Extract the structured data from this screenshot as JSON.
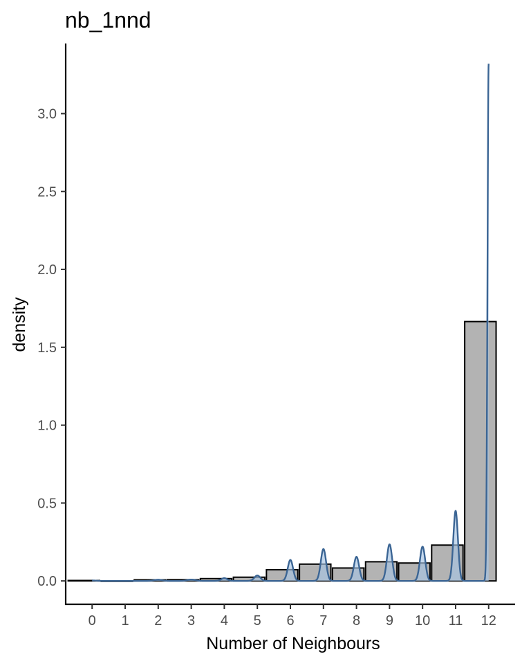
{
  "chart_data": {
    "type": "bar",
    "title": "nb_1nnd",
    "xlabel": "Number of Neighbours",
    "ylabel": "density",
    "x_ticks": [
      "0",
      "1",
      "2",
      "3",
      "4",
      "5",
      "6",
      "7",
      "8",
      "9",
      "10",
      "11",
      "12"
    ],
    "y_ticks": [
      "0.0",
      "0.5",
      "1.0",
      "1.5",
      "2.0",
      "2.5",
      "3.0"
    ],
    "xlim": [
      -0.8,
      12.8
    ],
    "ylim": [
      -0.15,
      3.45
    ],
    "bars": {
      "width": 0.95,
      "x": [
        -0.25,
        0.75,
        1.75,
        2.75,
        3.75,
        4.75,
        5.75,
        6.75,
        7.75,
        8.75,
        9.75,
        10.75,
        11.75
      ],
      "values": [
        0.003,
        0.0,
        0.007,
        0.008,
        0.015,
        0.024,
        0.072,
        0.108,
        0.083,
        0.123,
        0.115,
        0.23,
        1.665
      ],
      "fill": "#b3b3b3",
      "stroke": "#000000"
    },
    "density": {
      "peaks": [
        {
          "center": 0.0,
          "height": 0.003,
          "sd": 0.12
        },
        {
          "center": 2.0,
          "height": 0.008,
          "sd": 0.12
        },
        {
          "center": 3.0,
          "height": 0.009,
          "sd": 0.12
        },
        {
          "center": 4.0,
          "height": 0.018,
          "sd": 0.09
        },
        {
          "center": 5.0,
          "height": 0.035,
          "sd": 0.09
        },
        {
          "center": 6.0,
          "height": 0.135,
          "sd": 0.08
        },
        {
          "center": 7.0,
          "height": 0.205,
          "sd": 0.08
        },
        {
          "center": 8.0,
          "height": 0.155,
          "sd": 0.08
        },
        {
          "center": 9.0,
          "height": 0.235,
          "sd": 0.08
        },
        {
          "center": 10.0,
          "height": 0.22,
          "sd": 0.08
        },
        {
          "center": 11.0,
          "height": 0.45,
          "sd": 0.07
        },
        {
          "center": 12.0,
          "height": 3.32,
          "sd": 0.035
        }
      ],
      "line_color": "#3b6594",
      "fill_color": "#a8c4e3",
      "fill_opacity": 0.65
    }
  }
}
